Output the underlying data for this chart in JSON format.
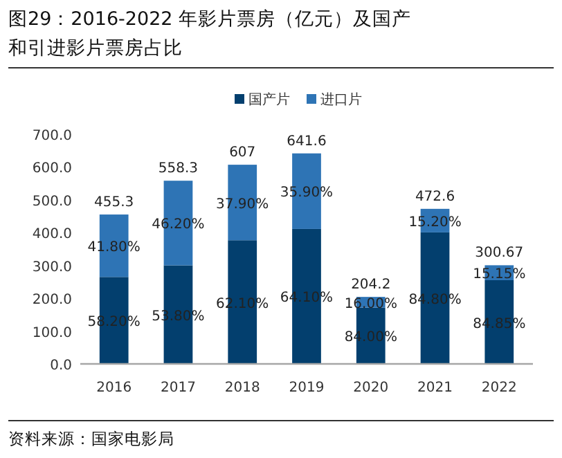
{
  "chart_data": {
    "type": "bar",
    "title": "图29：2016-2022 年影片票房（亿元）及国产和引进影片票房占比",
    "categories": [
      "2016",
      "2017",
      "2018",
      "2019",
      "2020",
      "2021",
      "2022"
    ],
    "stacked": true,
    "series": [
      {
        "name": "国产片",
        "color": "#033f6e",
        "values": [
          265.0,
          300.4,
          376.9,
          411.3,
          171.5,
          400.8,
          255.12
        ]
      },
      {
        "name": "进口片",
        "color": "#2e74b5",
        "values": [
          190.3,
          257.9,
          230.1,
          230.3,
          32.7,
          71.8,
          45.55
        ]
      }
    ],
    "totals": [
      "455.3",
      "558.3",
      "607",
      "641.6",
      "204.2",
      "472.6",
      "300.67"
    ],
    "ylim": [
      0,
      700
    ],
    "yticks": [
      {
        "value": 0,
        "label": "0.0"
      },
      {
        "value": 100,
        "label": "100.0"
      },
      {
        "value": 200,
        "label": "200.0"
      },
      {
        "value": 300,
        "label": "300.0"
      },
      {
        "value": 400,
        "label": "400.0"
      },
      {
        "value": 500,
        "label": "500.0"
      },
      {
        "value": 600,
        "label": "600.0"
      },
      {
        "value": 700,
        "label": "700.0"
      }
    ],
    "legend": "top",
    "grid": false,
    "annotations": [
      "58.20%",
      "53.80%",
      "62.10%",
      "64.10%",
      "84.00%",
      "84.80%",
      "84.85%",
      "41.80%",
      "46.20%",
      "37.90%",
      "35.90%",
      "16.00%",
      "15.20%",
      "15.15%",
      "资料来源：国家电影局"
    ]
  }
}
